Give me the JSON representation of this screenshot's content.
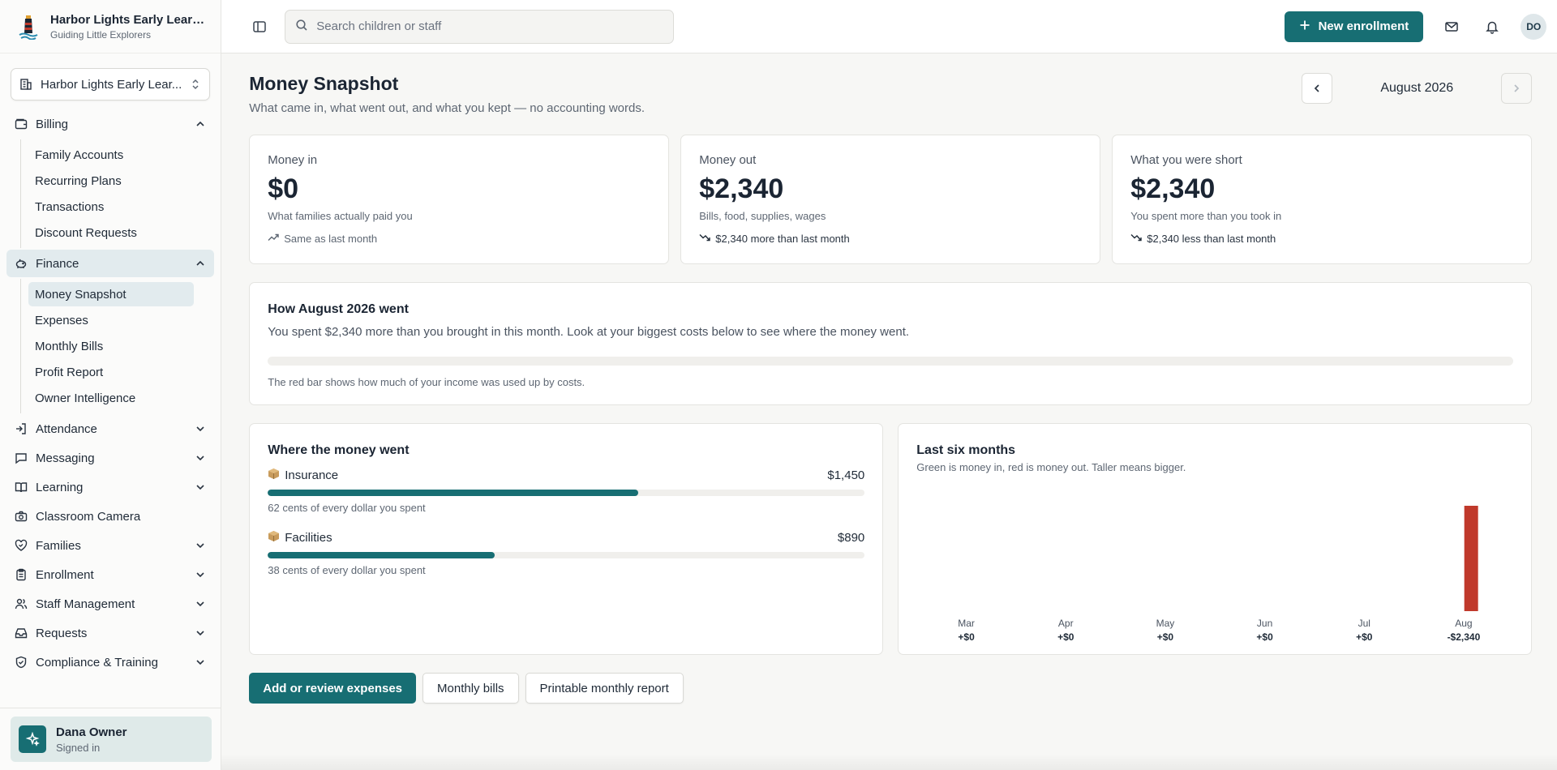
{
  "brand": {
    "name": "Harbor Lights Early Learn...",
    "tagline": "Guiding Little Explorers"
  },
  "org_selector": {
    "label": "Harbor Lights Early Lear..."
  },
  "nav": {
    "billing": {
      "label": "Billing",
      "items": [
        "Family Accounts",
        "Recurring Plans",
        "Transactions",
        "Discount Requests"
      ]
    },
    "finance": {
      "label": "Finance",
      "items": [
        "Money Snapshot",
        "Expenses",
        "Monthly Bills",
        "Profit Report",
        "Owner Intelligence"
      ]
    },
    "groups": [
      "Attendance",
      "Messaging",
      "Learning",
      "Classroom Camera",
      "Families",
      "Enrollment",
      "Staff Management",
      "Requests",
      "Compliance & Training"
    ]
  },
  "user": {
    "name": "Dana Owner",
    "status": "Signed in",
    "initials": "DO"
  },
  "topbar": {
    "search_placeholder": "Search children or staff",
    "new_enrollment": "New enrollment"
  },
  "page": {
    "title": "Money Snapshot",
    "subtitle": "What came in, what went out, and what you kept — no accounting words.",
    "month": "August 2026"
  },
  "stats": [
    {
      "label": "Money in",
      "value": "$0",
      "desc": "What families actually paid you",
      "trend": "Same as last month"
    },
    {
      "label": "Money out",
      "value": "$2,340",
      "desc": "Bills, food, supplies, wages",
      "trend": "$2,340 more than last month"
    },
    {
      "label": "What you were short",
      "value": "$2,340",
      "desc": "You spent more than you took in",
      "trend": "$2,340 less than last month"
    }
  ],
  "summary": {
    "title": "How August 2026 went",
    "text": "You spent $2,340 more than you brought in this month. Look at your biggest costs below to see where the money went.",
    "bar_fraction": 0,
    "note": "The red bar shows how much of your income was used up by costs."
  },
  "costs": {
    "title": "Where the money went",
    "items": [
      {
        "name": "Insurance",
        "amount": "$1,450",
        "fraction": 0.62,
        "note": "62 cents of every dollar you spent"
      },
      {
        "name": "Facilities",
        "amount": "$890",
        "fraction": 0.38,
        "note": "38 cents of every dollar you spent"
      }
    ]
  },
  "chart_data": {
    "type": "bar",
    "title": "Last six months",
    "subtitle": "Green is money in, red is money out. Taller means bigger.",
    "categories": [
      "Mar",
      "Apr",
      "May",
      "Jun",
      "Jul",
      "Aug"
    ],
    "value_labels": [
      "+$0",
      "+$0",
      "+$0",
      "+$0",
      "+$0",
      "-$2,340"
    ],
    "series": [
      {
        "values": [
          0,
          0,
          0,
          0,
          0,
          0
        ],
        "color": "#2e8b57"
      },
      {
        "values": [
          0,
          0,
          0,
          0,
          0,
          2340
        ],
        "color": "#c0392b"
      }
    ]
  },
  "actions": {
    "expenses": "Add or review expenses",
    "bills": "Monthly bills",
    "report": "Printable monthly report"
  },
  "colors": {
    "accent": "#176e73",
    "negative": "#c0392b",
    "positive": "#2e8b57"
  }
}
